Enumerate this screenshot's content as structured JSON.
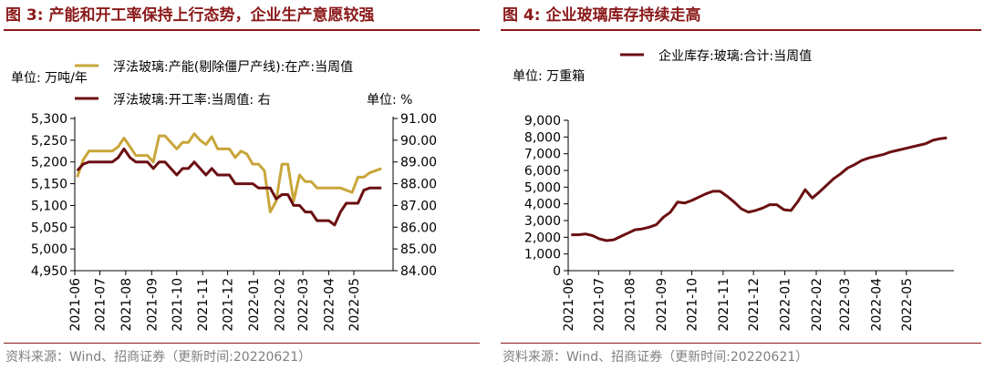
{
  "colors": {
    "title": "#8B1A1A",
    "gold": "#C9A63A",
    "maroon": "#6B0F12",
    "source": "#7f7f7f"
  },
  "left_panel": {
    "title": "图 3:  产能和开工率保持上行态势，企业生产意愿较强",
    "source": "资料来源：Wind、招商证券（更新时间:20220621）"
  },
  "right_panel": {
    "title": "图 4:  企业玻璃库存持续走高",
    "source": "资料来源：Wind、招商证券（更新时间:20220621）"
  },
  "chart_data": [
    {
      "type": "line",
      "left_unit": "单位:  万吨/年",
      "right_unit": "单位:  %",
      "y_left": {
        "ylim": [
          4950,
          5300
        ],
        "ticks": [
          "5,300",
          "5,250",
          "5,200",
          "5,150",
          "5,100",
          "5,050",
          "5,000",
          "4,950"
        ]
      },
      "y_right": {
        "ylim": [
          84.0,
          91.0
        ],
        "ticks": [
          "91.00",
          "90.00",
          "89.00",
          "88.00",
          "87.00",
          "86.00",
          "85.00",
          "84.00"
        ]
      },
      "x_ticks": [
        "2021-06",
        "2021-07",
        "2021-08",
        "2021-09",
        "2021-10",
        "2021-11",
        "2021-12",
        "2022-01",
        "2022-02",
        "2022-03",
        "2022-04",
        "2022-05"
      ],
      "x_range": [
        "2021-06-01",
        "2022-06-17"
      ],
      "series": [
        {
          "name": "浮法玻璃:产能(剔除僵尸产线):在产:当周值",
          "axis": "left",
          "color": "#C9A63A",
          "points": [
            [
              "2021-06-04",
              5165
            ],
            [
              "2021-06-11",
              5205
            ],
            [
              "2021-06-18",
              5225
            ],
            [
              "2021-06-25",
              5225
            ],
            [
              "2021-07-02",
              5225
            ],
            [
              "2021-07-09",
              5225
            ],
            [
              "2021-07-16",
              5225
            ],
            [
              "2021-07-23",
              5235
            ],
            [
              "2021-07-30",
              5255
            ],
            [
              "2021-08-06",
              5235
            ],
            [
              "2021-08-13",
              5215
            ],
            [
              "2021-08-20",
              5215
            ],
            [
              "2021-08-27",
              5215
            ],
            [
              "2021-09-03",
              5200
            ],
            [
              "2021-09-10",
              5260
            ],
            [
              "2021-09-17",
              5260
            ],
            [
              "2021-09-24",
              5245
            ],
            [
              "2021-10-01",
              5230
            ],
            [
              "2021-10-08",
              5245
            ],
            [
              "2021-10-15",
              5245
            ],
            [
              "2021-10-22",
              5265
            ],
            [
              "2021-10-29",
              5250
            ],
            [
              "2021-11-05",
              5240
            ],
            [
              "2021-11-12",
              5258
            ],
            [
              "2021-11-19",
              5230
            ],
            [
              "2021-11-26",
              5230
            ],
            [
              "2021-12-03",
              5230
            ],
            [
              "2021-12-10",
              5210
            ],
            [
              "2021-12-17",
              5225
            ],
            [
              "2021-12-24",
              5218
            ],
            [
              "2021-12-31",
              5195
            ],
            [
              "2022-01-07",
              5195
            ],
            [
              "2022-01-14",
              5180
            ],
            [
              "2022-01-21",
              5085
            ],
            [
              "2022-01-28",
              5110
            ],
            [
              "2022-02-04",
              5195
            ],
            [
              "2022-02-11",
              5195
            ],
            [
              "2022-02-18",
              5110
            ],
            [
              "2022-02-25",
              5170
            ],
            [
              "2022-03-04",
              5155
            ],
            [
              "2022-03-11",
              5155
            ],
            [
              "2022-03-18",
              5140
            ],
            [
              "2022-03-25",
              5140
            ],
            [
              "2022-04-01",
              5140
            ],
            [
              "2022-04-08",
              5140
            ],
            [
              "2022-04-15",
              5140
            ],
            [
              "2022-04-22",
              5135
            ],
            [
              "2022-04-29",
              5130
            ],
            [
              "2022-05-06",
              5165
            ],
            [
              "2022-05-13",
              5165
            ],
            [
              "2022-05-20",
              5175
            ],
            [
              "2022-05-27",
              5180
            ],
            [
              "2022-06-03",
              5185
            ]
          ]
        },
        {
          "name": "浮法玻璃:开工率:当周值:  右",
          "axis": "right",
          "color": "#6B0F12",
          "points": [
            [
              "2021-06-04",
              88.6
            ],
            [
              "2021-06-11",
              88.9
            ],
            [
              "2021-06-18",
              89.0
            ],
            [
              "2021-06-25",
              89.0
            ],
            [
              "2021-07-02",
              89.0
            ],
            [
              "2021-07-09",
              89.0
            ],
            [
              "2021-07-16",
              89.0
            ],
            [
              "2021-07-23",
              89.2
            ],
            [
              "2021-07-30",
              89.6
            ],
            [
              "2021-08-06",
              89.2
            ],
            [
              "2021-08-13",
              89.0
            ],
            [
              "2021-08-20",
              89.0
            ],
            [
              "2021-08-27",
              89.0
            ],
            [
              "2021-09-03",
              88.7
            ],
            [
              "2021-09-10",
              89.0
            ],
            [
              "2021-09-17",
              89.0
            ],
            [
              "2021-09-24",
              88.7
            ],
            [
              "2021-10-01",
              88.4
            ],
            [
              "2021-10-08",
              88.7
            ],
            [
              "2021-10-15",
              88.7
            ],
            [
              "2021-10-22",
              89.0
            ],
            [
              "2021-10-29",
              88.7
            ],
            [
              "2021-11-05",
              88.4
            ],
            [
              "2021-11-12",
              88.7
            ],
            [
              "2021-11-19",
              88.4
            ],
            [
              "2021-11-26",
              88.4
            ],
            [
              "2021-12-03",
              88.4
            ],
            [
              "2021-12-10",
              88.0
            ],
            [
              "2021-12-17",
              88.0
            ],
            [
              "2021-12-24",
              88.0
            ],
            [
              "2021-12-31",
              88.0
            ],
            [
              "2022-01-07",
              87.8
            ],
            [
              "2022-01-14",
              87.8
            ],
            [
              "2022-01-21",
              87.8
            ],
            [
              "2022-01-28",
              87.3
            ],
            [
              "2022-02-04",
              87.5
            ],
            [
              "2022-02-11",
              87.5
            ],
            [
              "2022-02-18",
              87.0
            ],
            [
              "2022-02-25",
              87.0
            ],
            [
              "2022-03-04",
              86.7
            ],
            [
              "2022-03-11",
              86.7
            ],
            [
              "2022-03-18",
              86.3
            ],
            [
              "2022-03-25",
              86.3
            ],
            [
              "2022-04-01",
              86.3
            ],
            [
              "2022-04-08",
              86.1
            ],
            [
              "2022-04-15",
              86.7
            ],
            [
              "2022-04-22",
              87.1
            ],
            [
              "2022-04-29",
              87.1
            ],
            [
              "2022-05-06",
              87.1
            ],
            [
              "2022-05-13",
              87.7
            ],
            [
              "2022-05-20",
              87.8
            ],
            [
              "2022-05-27",
              87.8
            ],
            [
              "2022-06-03",
              87.8
            ]
          ]
        }
      ]
    },
    {
      "type": "line",
      "unit": "单位:  万重箱",
      "ylim": [
        0,
        9000
      ],
      "y_ticks": [
        "9,000",
        "8,000",
        "7,000",
        "6,000",
        "5,000",
        "4,000",
        "3,000",
        "2,000",
        "1,000",
        "0"
      ],
      "x_ticks": [
        "2021-06",
        "2021-07",
        "2021-08",
        "2021-09",
        "2021-10",
        "2021-11",
        "2021-12",
        "2022-01",
        "2022-02",
        "2022-03",
        "2022-04",
        "2022-05"
      ],
      "x_range": [
        "2021-06-01",
        "2022-06-17"
      ],
      "series": [
        {
          "name": "企业库存:玻璃:合计:当周值",
          "color": "#6B0F12",
          "points": [
            [
              "2021-06-04",
              2150
            ],
            [
              "2021-06-11",
              2150
            ],
            [
              "2021-06-18",
              2200
            ],
            [
              "2021-06-25",
              2100
            ],
            [
              "2021-07-02",
              1900
            ],
            [
              "2021-07-09",
              1800
            ],
            [
              "2021-07-16",
              1850
            ],
            [
              "2021-07-23",
              2050
            ],
            [
              "2021-07-30",
              2250
            ],
            [
              "2021-08-06",
              2450
            ],
            [
              "2021-08-13",
              2500
            ],
            [
              "2021-08-20",
              2600
            ],
            [
              "2021-08-27",
              2750
            ],
            [
              "2021-09-03",
              3200
            ],
            [
              "2021-09-10",
              3500
            ],
            [
              "2021-09-17",
              4100
            ],
            [
              "2021-09-24",
              4050
            ],
            [
              "2021-10-01",
              4200
            ],
            [
              "2021-10-08",
              4400
            ],
            [
              "2021-10-15",
              4600
            ],
            [
              "2021-10-22",
              4750
            ],
            [
              "2021-10-29",
              4750
            ],
            [
              "2021-11-05",
              4450
            ],
            [
              "2021-11-12",
              4100
            ],
            [
              "2021-11-19",
              3700
            ],
            [
              "2021-11-26",
              3500
            ],
            [
              "2021-12-03",
              3600
            ],
            [
              "2021-12-10",
              3750
            ],
            [
              "2021-12-17",
              3950
            ],
            [
              "2021-12-24",
              3950
            ],
            [
              "2021-12-31",
              3650
            ],
            [
              "2022-01-07",
              3600
            ],
            [
              "2022-01-14",
              4150
            ],
            [
              "2022-01-21",
              4850
            ],
            [
              "2022-01-28",
              4350
            ],
            [
              "2022-02-04",
              4700
            ],
            [
              "2022-02-11",
              5100
            ],
            [
              "2022-02-18",
              5500
            ],
            [
              "2022-02-25",
              5800
            ],
            [
              "2022-03-04",
              6150
            ],
            [
              "2022-03-11",
              6350
            ],
            [
              "2022-03-18",
              6600
            ],
            [
              "2022-03-25",
              6750
            ],
            [
              "2022-04-01",
              6850
            ],
            [
              "2022-04-08",
              6950
            ],
            [
              "2022-04-15",
              7100
            ],
            [
              "2022-04-22",
              7200
            ],
            [
              "2022-04-29",
              7300
            ],
            [
              "2022-05-06",
              7400
            ],
            [
              "2022-05-13",
              7500
            ],
            [
              "2022-05-20",
              7600
            ],
            [
              "2022-05-27",
              7800
            ],
            [
              "2022-06-03",
              7900
            ],
            [
              "2022-06-10",
              7950
            ]
          ]
        }
      ]
    }
  ]
}
